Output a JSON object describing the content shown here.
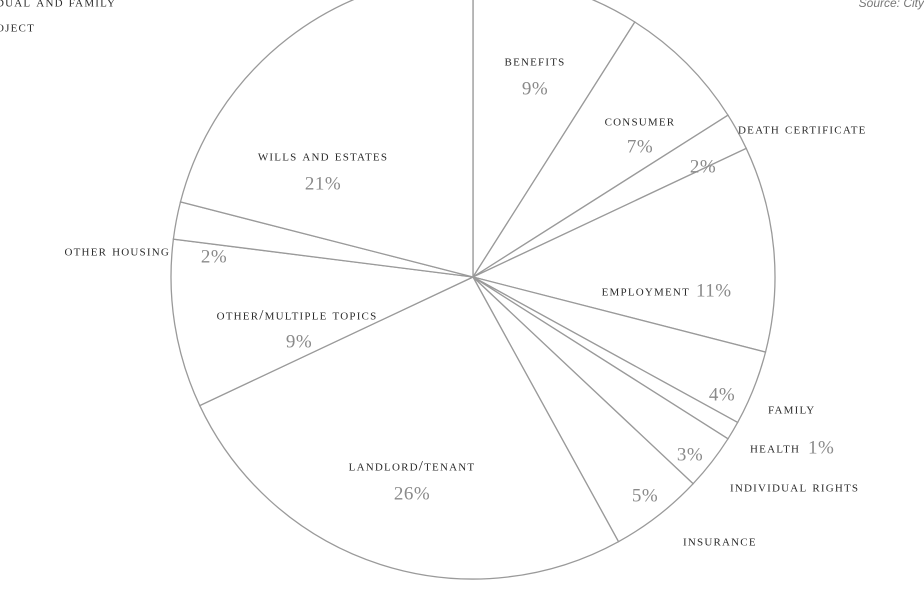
{
  "chart_data": {
    "type": "pie",
    "title_fragments": [
      "DUAL AND FAMILY",
      "OJECT"
    ],
    "source": "Source: City",
    "categories": [
      "BENEFITS",
      "CONSUMER",
      "DEATH CERTIFICATE",
      "EMPLOYMENT",
      "FAMILY",
      "HEALTH",
      "INDIVIDUAL RIGHTS",
      "INSURANCE",
      "LANDLORD/TENANT",
      "OTHER/MULTIPLE TOPICS",
      "OTHER HOUSING",
      "WILLS AND ESTATES"
    ],
    "values": [
      9,
      7,
      2,
      11,
      4,
      1,
      3,
      5,
      26,
      9,
      2,
      21
    ],
    "value_labels": [
      "9%",
      "7%",
      "2%",
      "11%",
      "4%",
      "1%",
      "3%",
      "5%",
      "26%",
      "9%",
      "2%",
      "21%"
    ],
    "color": "#ffffff",
    "edge_color": "#9a9a9a"
  }
}
